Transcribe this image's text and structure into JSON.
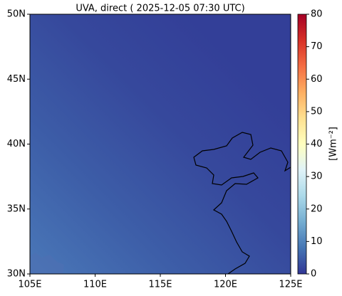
{
  "chart_data": {
    "type": "map",
    "title": "UVA, direct ( 2025-12-05 07:30 UTC)",
    "xlim": [
      105,
      125
    ],
    "xticks": [
      {
        "value": 105,
        "label": "105E"
      },
      {
        "value": 110,
        "label": "110E"
      },
      {
        "value": 115,
        "label": "115E"
      },
      {
        "value": 120,
        "label": "120E"
      },
      {
        "value": 125,
        "label": "125E"
      }
    ],
    "ylim": [
      30,
      50
    ],
    "yticks": [
      {
        "value": 30,
        "label": "30N"
      },
      {
        "value": 35,
        "label": "35N"
      },
      {
        "value": 40,
        "label": "40N"
      },
      {
        "value": 45,
        "label": "45N"
      },
      {
        "value": 50,
        "label": "50N"
      }
    ],
    "colorbar": {
      "lim": [
        0,
        80
      ],
      "ticks": [
        0,
        10,
        20,
        30,
        40,
        50,
        60,
        70,
        80
      ],
      "label": "[Wm⁻²]",
      "colormap": [
        "#313695",
        "#4575b4",
        "#74add1",
        "#abd9e9",
        "#e0f3f8",
        "#ffffbf",
        "#fee090",
        "#fdae61",
        "#f46d43",
        "#d73027",
        "#a50026"
      ]
    }
  }
}
